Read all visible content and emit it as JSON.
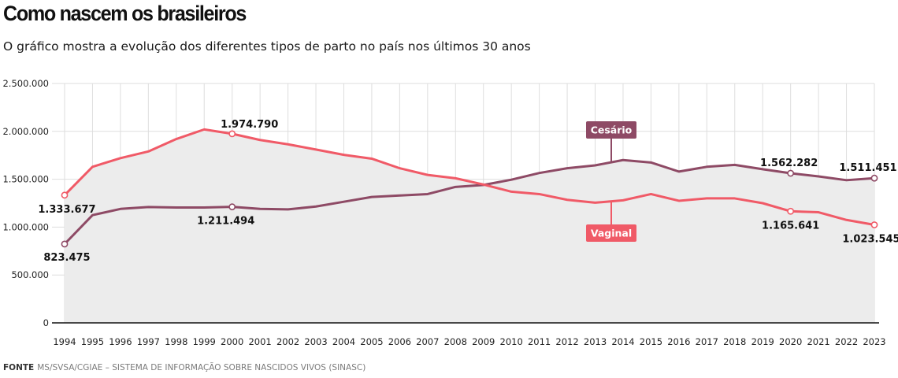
{
  "title": "Como nascem os brasileiros",
  "subtitle": "O gráfico mostra a evolução dos diferentes tipos de parto no país nos últimos 30 anos",
  "source": {
    "label": "FONTE",
    "text": "MS/SVSA/CGIAE – SISTEMA DE INFORMAÇÃO SOBRE NASCIDOS VIVOS (SINASC)"
  },
  "colors": {
    "cesario": "#8e4a65",
    "vaginal": "#f05a67",
    "area": "#ececec",
    "grid": "#dedede",
    "axis": "#111111"
  },
  "chart_data": {
    "type": "line",
    "title": "Como nascem os brasileiros",
    "subtitle": "O gráfico mostra a evolução dos diferentes tipos de parto no país nos últimos 30 anos",
    "xlabel": "",
    "ylabel": "",
    "ylim": [
      0,
      2500000
    ],
    "yticks": [
      0,
      500000,
      1000000,
      1500000,
      2000000,
      2500000
    ],
    "ytick_labels": [
      "0",
      "500.000",
      "1.000.000",
      "1.500.000",
      "2.000.000",
      "2.500.000"
    ],
    "categories": [
      "1994",
      "1995",
      "1996",
      "1997",
      "1998",
      "1999",
      "2000",
      "2001",
      "2002",
      "2003",
      "2004",
      "2005",
      "2006",
      "2007",
      "2008",
      "2009",
      "2010",
      "2011",
      "2012",
      "2013",
      "2014",
      "2015",
      "2016",
      "2017",
      "2018",
      "2019",
      "2020",
      "2021",
      "2022",
      "2023"
    ],
    "series": [
      {
        "name": "Vaginal",
        "color": "#f05a67",
        "values": [
          1333677,
          1630000,
          1720000,
          1790000,
          1920000,
          2020000,
          1974790,
          1910000,
          1865000,
          1810000,
          1755000,
          1715000,
          1615000,
          1545000,
          1510000,
          1445000,
          1370000,
          1345000,
          1285000,
          1255000,
          1280000,
          1345000,
          1275000,
          1300000,
          1300000,
          1250000,
          1165641,
          1155000,
          1075000,
          1023545
        ],
        "annotations": [
          {
            "index": 0,
            "label": "1.333.677"
          },
          {
            "index": 6,
            "label": "1.974.790"
          },
          {
            "index": 26,
            "label": "1.165.641"
          },
          {
            "index": 29,
            "label": "1.023.545"
          }
        ]
      },
      {
        "name": "Cesário",
        "color": "#8e4a65",
        "values": [
          823475,
          1125000,
          1190000,
          1210000,
          1205000,
          1205000,
          1211494,
          1190000,
          1185000,
          1215000,
          1265000,
          1315000,
          1330000,
          1345000,
          1420000,
          1440000,
          1495000,
          1565000,
          1615000,
          1645000,
          1700000,
          1675000,
          1580000,
          1630000,
          1650000,
          1605000,
          1562282,
          1530000,
          1490000,
          1511451
        ],
        "annotations": [
          {
            "index": 0,
            "label": "823.475"
          },
          {
            "index": 6,
            "label": "1.211.494"
          },
          {
            "index": 26,
            "label": "1.562.282"
          },
          {
            "index": 29,
            "label": "1.511.451"
          }
        ]
      }
    ],
    "series_labels": [
      {
        "series": "Cesário",
        "text": "Cesário"
      },
      {
        "series": "Vaginal",
        "text": "Vaginal"
      }
    ]
  }
}
